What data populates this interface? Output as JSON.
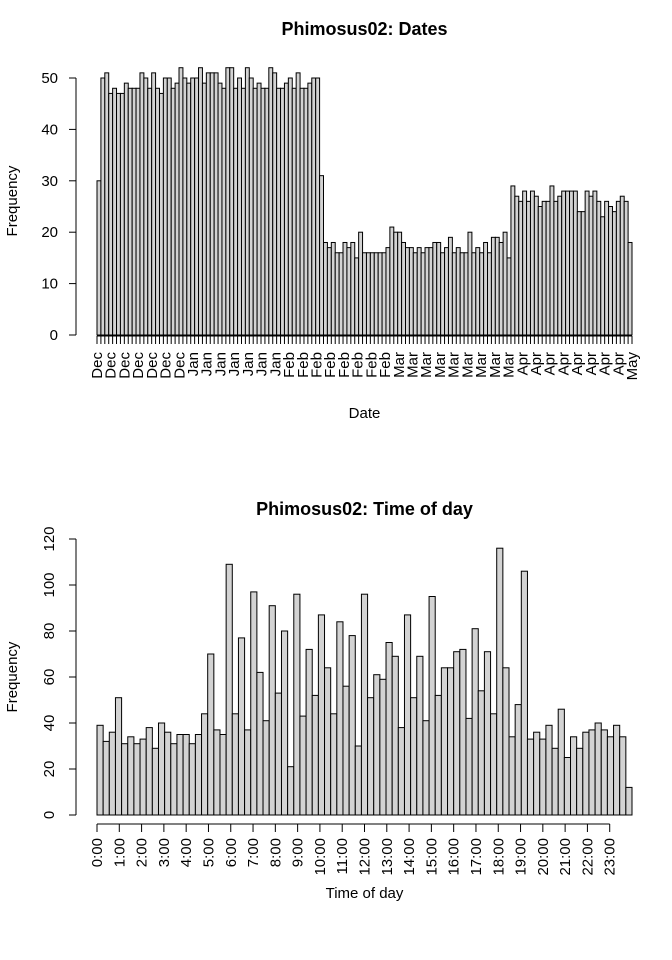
{
  "chart_data": [
    {
      "type": "bar",
      "title": "Phimosus02: Dates",
      "xlabel": "Date",
      "ylabel": "Frequency",
      "ylim": [
        0,
        50
      ],
      "yticks": [
        0,
        10,
        20,
        30,
        40,
        50
      ],
      "x_tick_labels": [
        "Dec",
        "Dec",
        "Dec",
        "Dec",
        "Dec",
        "Dec",
        "Dec",
        "Jan",
        "Jan",
        "Jan",
        "Jan",
        "Jan",
        "Jan",
        "Jan",
        "Feb",
        "Feb",
        "Feb",
        "Feb",
        "Feb",
        "Feb",
        "Feb",
        "Feb",
        "Mar",
        "Mar",
        "Mar",
        "Mar",
        "Mar",
        "Mar",
        "Mar",
        "Mar",
        "Mar",
        "Apr",
        "Apr",
        "Apr",
        "Apr",
        "Apr",
        "Apr",
        "Apr",
        "Apr",
        "May"
      ],
      "values": [
        30,
        50,
        51,
        47,
        48,
        47,
        47,
        49,
        48,
        48,
        48,
        51,
        50,
        48,
        51,
        48,
        47,
        50,
        50,
        48,
        49,
        52,
        50,
        49,
        50,
        50,
        52,
        49,
        51,
        51,
        51,
        49,
        48,
        52,
        52,
        48,
        50,
        48,
        52,
        50,
        48,
        49,
        48,
        48,
        52,
        51,
        48,
        48,
        49,
        50,
        48,
        51,
        48,
        48,
        49,
        50,
        50,
        31,
        18,
        17,
        18,
        16,
        16,
        18,
        17,
        18,
        15,
        20,
        16,
        16,
        16,
        16,
        16,
        16,
        17,
        21,
        20,
        20,
        18,
        17,
        17,
        16,
        17,
        16,
        17,
        17,
        18,
        18,
        16,
        17,
        19,
        16,
        17,
        16,
        16,
        20,
        16,
        17,
        16,
        18,
        16,
        19,
        19,
        18,
        20,
        15,
        29,
        27,
        26,
        28,
        26,
        28,
        27,
        25,
        26,
        26,
        29,
        26,
        27,
        28,
        28,
        28,
        28,
        24,
        24,
        28,
        27,
        28,
        26,
        23,
        26,
        25,
        24,
        26,
        27,
        26,
        18
      ]
    },
    {
      "type": "bar",
      "title": "Phimosus02: Time of day",
      "xlabel": "Time of day",
      "ylabel": "Frequency",
      "ylim": [
        0,
        120
      ],
      "yticks": [
        0,
        20,
        40,
        60,
        80,
        100,
        120
      ],
      "x_tick_labels": [
        "0:00",
        "1:00",
        "2:00",
        "3:00",
        "4:00",
        "5:00",
        "6:00",
        "7:00",
        "8:00",
        "9:00",
        "10:00",
        "11:00",
        "12:00",
        "13:00",
        "14:00",
        "15:00",
        "16:00",
        "17:00",
        "18:00",
        "19:00",
        "20:00",
        "21:00",
        "22:00",
        "23:00"
      ],
      "values": [
        39,
        32,
        36,
        51,
        31,
        34,
        31,
        33,
        38,
        29,
        40,
        36,
        31,
        35,
        35,
        31,
        35,
        44,
        70,
        37,
        35,
        109,
        44,
        77,
        37,
        97,
        62,
        41,
        91,
        53,
        80,
        21,
        96,
        43,
        72,
        52,
        87,
        64,
        44,
        84,
        56,
        78,
        30,
        96,
        51,
        61,
        59,
        75,
        69,
        38,
        87,
        51,
        69,
        41,
        95,
        52,
        64,
        64,
        71,
        72,
        42,
        81,
        54,
        71,
        44,
        116,
        64,
        34,
        48,
        106,
        33,
        36,
        33,
        39,
        29,
        46,
        25,
        34,
        29,
        36,
        37,
        40,
        37,
        34,
        39,
        34,
        12
      ]
    }
  ]
}
